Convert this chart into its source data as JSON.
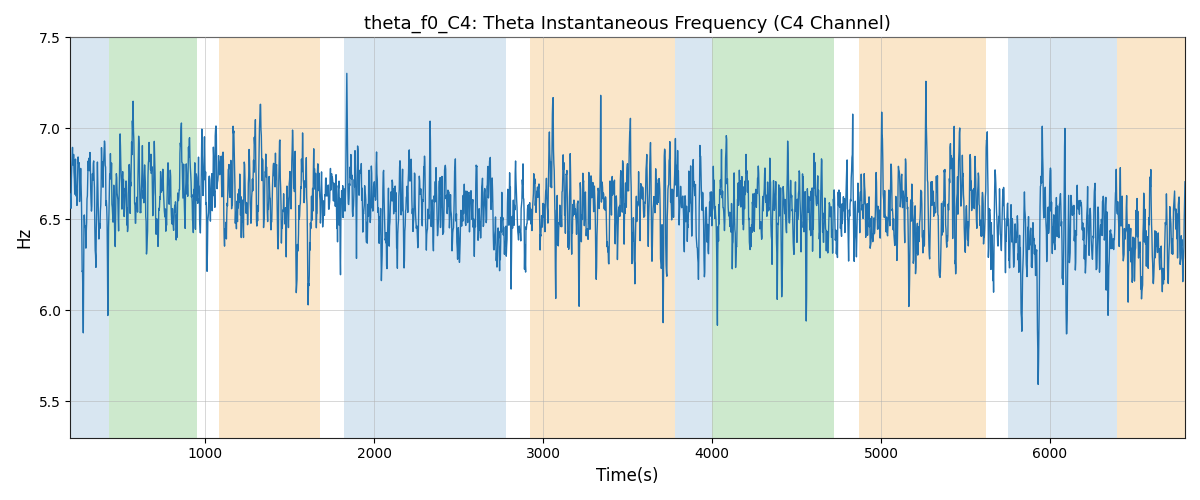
{
  "title": "theta_f0_C4: Theta Instantaneous Frequency (C4 Channel)",
  "xlabel": "Time(s)",
  "ylabel": "Hz",
  "xlim": [
    200,
    6800
  ],
  "ylim": [
    5.3,
    7.5
  ],
  "line_color": "#2272b0",
  "line_width": 1.0,
  "bg_regions": [
    {
      "xmin": 200,
      "xmax": 430,
      "color": "#aac8e0",
      "alpha": 0.45
    },
    {
      "xmin": 430,
      "xmax": 950,
      "color": "#90d090",
      "alpha": 0.45
    },
    {
      "xmin": 1080,
      "xmax": 1680,
      "color": "#f5c888",
      "alpha": 0.45
    },
    {
      "xmin": 1820,
      "xmax": 2780,
      "color": "#aac8e0",
      "alpha": 0.45
    },
    {
      "xmin": 2920,
      "xmax": 3780,
      "color": "#f5c888",
      "alpha": 0.45
    },
    {
      "xmin": 3780,
      "xmax": 4000,
      "color": "#aac8e0",
      "alpha": 0.45
    },
    {
      "xmin": 4000,
      "xmax": 4720,
      "color": "#90d090",
      "alpha": 0.45
    },
    {
      "xmin": 4870,
      "xmax": 5620,
      "color": "#f5c888",
      "alpha": 0.45
    },
    {
      "xmin": 5750,
      "xmax": 6400,
      "color": "#aac8e0",
      "alpha": 0.45
    },
    {
      "xmin": 6400,
      "xmax": 6800,
      "color": "#f5c888",
      "alpha": 0.45
    }
  ],
  "seed": 12345,
  "n_points": 3000,
  "mean_freq": 6.5,
  "grid_color": "#b0b0b0",
  "grid_alpha": 0.7,
  "yticks": [
    5.5,
    6.0,
    6.5,
    7.0,
    7.5
  ],
  "xticks": [
    1000,
    2000,
    3000,
    4000,
    5000,
    6000
  ]
}
